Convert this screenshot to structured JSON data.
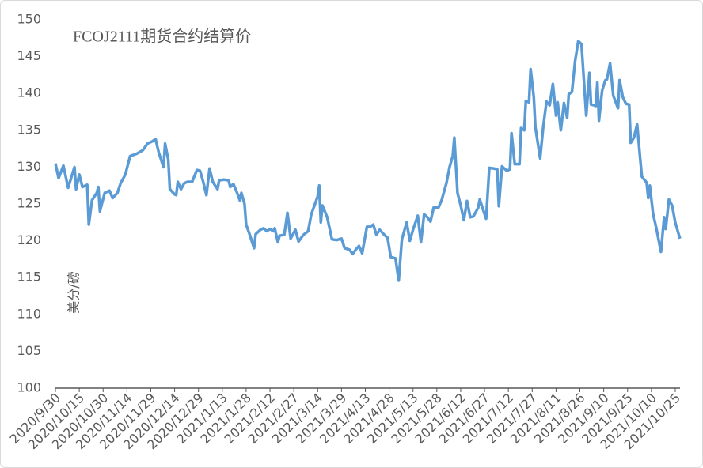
{
  "chart_data": {
    "type": "line",
    "title": "FCOJ2111期货合约结算价",
    "y_label": "美分/磅",
    "x": [
      "2020/9/30",
      "2020/10/2",
      "2020/10/5",
      "2020/10/8",
      "2020/10/12",
      "2020/10/13",
      "2020/10/15",
      "2020/10/17",
      "2020/10/20",
      "2020/10/21",
      "2020/10/23",
      "2020/10/26",
      "2020/10/27",
      "2020/10/28",
      "2020/10/31",
      "2020/11/3",
      "2020/11/5",
      "2020/11/8",
      "2020/11/10",
      "2020/11/13",
      "2020/11/16",
      "2020/11/20",
      "2020/11/24",
      "2020/11/27",
      "2020/11/30",
      "2020/12/2",
      "2020/12/4",
      "2020/12/7",
      "2020/12/8",
      "2020/12/10",
      "2020/12/11",
      "2020/12/14",
      "2020/12/15",
      "2020/12/16",
      "2020/12/18",
      "2020/12/20",
      "2020/12/22",
      "2020/12/25",
      "2020/12/28",
      "2020/12/30",
      "2021/1/1",
      "2021/1/3",
      "2021/1/5",
      "2021/1/7",
      "2021/1/10",
      "2021/1/11",
      "2021/1/14",
      "2021/1/17",
      "2021/1/18",
      "2021/1/20",
      "2021/1/22",
      "2021/1/24",
      "2021/1/25",
      "2021/1/27",
      "2021/1/28",
      "2021/1/30",
      "2021/2/2",
      "2021/2/3",
      "2021/2/6",
      "2021/2/8",
      "2021/2/10",
      "2021/2/12",
      "2021/2/14",
      "2021/2/15",
      "2021/2/17",
      "2021/2/18",
      "2021/2/21",
      "2021/2/23",
      "2021/2/25",
      "2021/2/28",
      "2021/3/2",
      "2021/3/5",
      "2021/3/8",
      "2021/3/10",
      "2021/3/12",
      "2021/3/14",
      "2021/3/15",
      "2021/3/16",
      "2021/3/17",
      "2021/3/20",
      "2021/3/23",
      "2021/3/26",
      "2021/3/29",
      "2021/3/31",
      "2021/4/3",
      "2021/4/5",
      "2021/4/7",
      "2021/4/9",
      "2021/4/11",
      "2021/4/14",
      "2021/4/16",
      "2021/4/18",
      "2021/4/20",
      "2021/4/22",
      "2021/4/25",
      "2021/4/27",
      "2021/4/29",
      "2021/5/2",
      "2021/5/4",
      "2021/5/6",
      "2021/5/9",
      "2021/5/11",
      "2021/5/13",
      "2021/5/16",
      "2021/5/18",
      "2021/5/20",
      "2021/5/22",
      "2021/5/24",
      "2021/5/26",
      "2021/5/29",
      "2021/5/31",
      "2021/6/3",
      "2021/6/5",
      "2021/6/7",
      "2021/6/8",
      "2021/6/10",
      "2021/6/12",
      "2021/6/14",
      "2021/6/16",
      "2021/6/18",
      "2021/6/20",
      "2021/6/23",
      "2021/6/24",
      "2021/6/26",
      "2021/6/28",
      "2021/6/30",
      "2021/7/3",
      "2021/7/5",
      "2021/7/6",
      "2021/7/8",
      "2021/7/11",
      "2021/7/13",
      "2021/7/14",
      "2021/7/16",
      "2021/7/19",
      "2021/7/20",
      "2021/7/22",
      "2021/7/23",
      "2021/7/25",
      "2021/7/26",
      "2021/7/28",
      "2021/7/29",
      "2021/8/1",
      "2021/8/3",
      "2021/8/5",
      "2021/8/7",
      "2021/8/9",
      "2021/8/11",
      "2021/8/12",
      "2021/8/14",
      "2021/8/16",
      "2021/8/18",
      "2021/8/19",
      "2021/8/21",
      "2021/8/23",
      "2021/8/25",
      "2021/8/27",
      "2021/8/30",
      "2021/9/1",
      "2021/9/2",
      "2021/9/4",
      "2021/9/5",
      "2021/9/6",
      "2021/9/7",
      "2021/9/9",
      "2021/9/11",
      "2021/9/12",
      "2021/9/14",
      "2021/9/16",
      "2021/9/19",
      "2021/9/20",
      "2021/9/22",
      "2021/9/24",
      "2021/9/26",
      "2021/9/27",
      "2021/9/29",
      "2021/10/1",
      "2021/10/3",
      "2021/10/4",
      "2021/10/7",
      "2021/10/8",
      "2021/10/9",
      "2021/10/11",
      "2021/10/13",
      "2021/10/16",
      "2021/10/18",
      "2021/10/19",
      "2021/10/21",
      "2021/10/23",
      "2021/10/25",
      "2021/10/27",
      "2021/10/28"
    ],
    "values": [
      130.5,
      128.5,
      130.2,
      127.2,
      130,
      127,
      129,
      127.3,
      127.6,
      122.2,
      125.5,
      126.5,
      127.3,
      124,
      126.5,
      126.8,
      125.8,
      126.5,
      127.8,
      129,
      131.5,
      131.8,
      132.3,
      133.2,
      133.5,
      133.8,
      132,
      130,
      133.2,
      131,
      127,
      126.3,
      126.2,
      128,
      127,
      127.8,
      128,
      128,
      129.6,
      129.5,
      128,
      126.2,
      129.8,
      128,
      127,
      128.2,
      128.3,
      128.2,
      127.3,
      127.7,
      126.7,
      125.5,
      126.5,
      125,
      122.2,
      121,
      119,
      120.9,
      121.5,
      121.7,
      121.3,
      121.6,
      121.3,
      121.7,
      119.8,
      120.7,
      120.8,
      123.8,
      120.3,
      121.5,
      119.9,
      120.8,
      121.3,
      123.6,
      124.8,
      126,
      127.5,
      122.5,
      124.8,
      123.2,
      120.2,
      120.1,
      120.3,
      119,
      118.8,
      118.2,
      118.8,
      119.3,
      118.3,
      121.9,
      121.9,
      122.2,
      120.8,
      121.5,
      120.8,
      120.4,
      117.8,
      117.6,
      114.6,
      120.2,
      122.5,
      120,
      121.5,
      123.4,
      119.8,
      123.6,
      123.2,
      122.6,
      124.5,
      124.5,
      125.5,
      127.8,
      130,
      131.5,
      134,
      126.5,
      124.8,
      122.8,
      125.4,
      123.2,
      123.3,
      124.5,
      125.6,
      124.3,
      123,
      129.9,
      129.8,
      129.7,
      124.7,
      130.1,
      129.5,
      129.7,
      134.6,
      130.4,
      130.4,
      135.3,
      135,
      139,
      138.8,
      143.3,
      139.5,
      135.4,
      131.2,
      135.6,
      138.9,
      138.4,
      141.3,
      137,
      138.8,
      135,
      138.7,
      136.7,
      139.9,
      140.2,
      144.4,
      147.1,
      146.7,
      137,
      142.8,
      138.5,
      138.4,
      138.3,
      141.5,
      136.3,
      140.4,
      141.8,
      141.9,
      144.1,
      139.7,
      138,
      141.8,
      139.5,
      138.6,
      138.5,
      133.3,
      134,
      135.8,
      131,
      128.7,
      127.9,
      125.8,
      127.5,
      123.7,
      121.8,
      118.5,
      123.2,
      121.6,
      125.6,
      124.8,
      122.5,
      121,
      120.3
    ],
    "color": "#5b9bd5",
    "xlim": [
      "2020/9/30",
      "2021/10/28"
    ],
    "xticks": [
      "2020/9/30",
      "2020/10/15",
      "2020/10/30",
      "2020/11/14",
      "2020/11/29",
      "2020/12/14",
      "2020/12/29",
      "2021/1/13",
      "2021/1/28",
      "2021/2/12",
      "2021/2/27",
      "2021/3/14",
      "2021/3/29",
      "2021/4/13",
      "2021/4/28",
      "2021/5/13",
      "2021/5/28",
      "2021/6/12",
      "2021/6/27",
      "2021/7/12",
      "2021/7/27",
      "2021/8/11",
      "2021/8/26",
      "2021/9/10",
      "2021/9/25",
      "2021/10/10",
      "2021/10/25"
    ],
    "ylim": [
      100,
      150
    ],
    "yticks": [
      100,
      105,
      110,
      115,
      120,
      125,
      130,
      135,
      140,
      145,
      150
    ],
    "grid": false
  }
}
